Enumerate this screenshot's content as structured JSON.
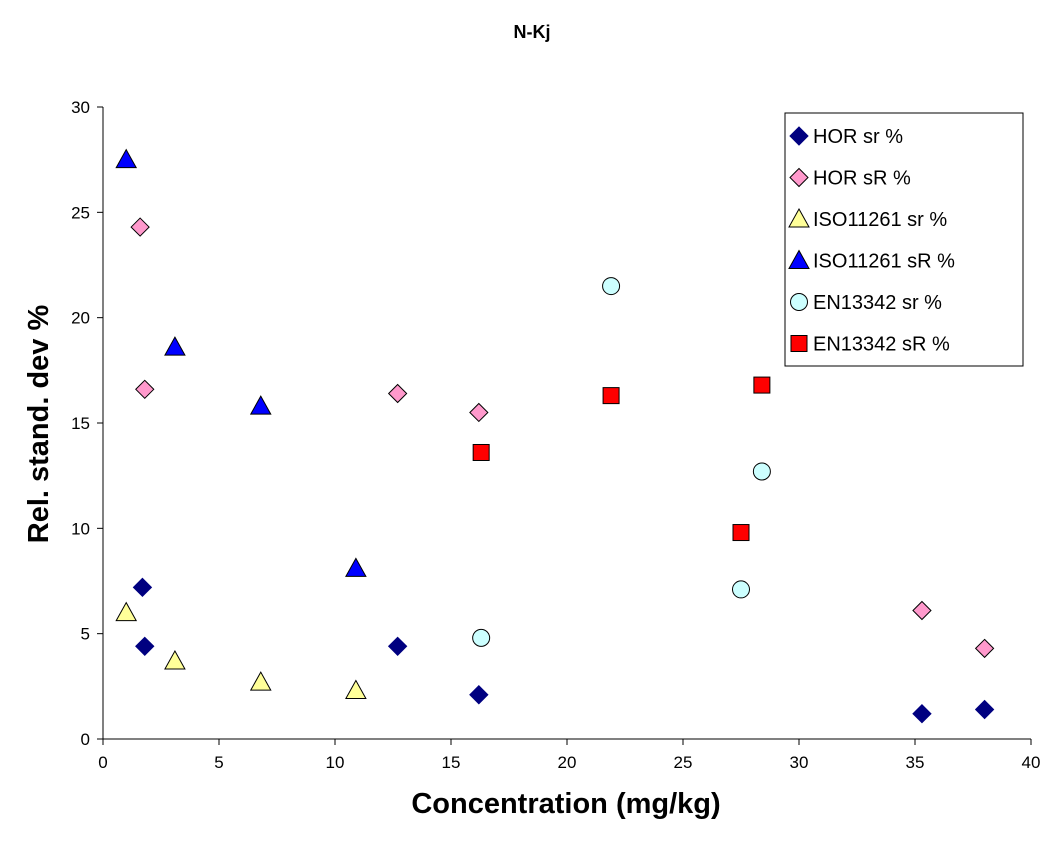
{
  "chart_data": {
    "type": "scatter",
    "title": "N-Kj",
    "xlabel": "Concentration (mg/kg)",
    "ylabel": "Rel. stand. dev %",
    "xlim": [
      0,
      40
    ],
    "ylim": [
      0,
      30
    ],
    "xticks": [
      0,
      5,
      10,
      15,
      20,
      25,
      30,
      35,
      40
    ],
    "yticks": [
      0,
      5,
      10,
      15,
      20,
      25,
      30
    ],
    "grid": false,
    "legend_position": "top-right",
    "series": [
      {
        "name": "HOR sr %",
        "marker": "diamond",
        "color": "#000080",
        "stroke": "#000080",
        "points": [
          [
            1.7,
            7.2
          ],
          [
            1.8,
            4.4
          ],
          [
            12.7,
            4.4
          ],
          [
            16.2,
            2.1
          ],
          [
            35.3,
            1.2
          ],
          [
            38.0,
            1.4
          ]
        ]
      },
      {
        "name": "HOR sR %",
        "marker": "diamond",
        "color": "#FF99CC",
        "stroke": "#000000",
        "points": [
          [
            1.6,
            24.3
          ],
          [
            1.8,
            16.6
          ],
          [
            12.7,
            16.4
          ],
          [
            16.2,
            15.5
          ],
          [
            35.3,
            6.1
          ],
          [
            38.0,
            4.3
          ]
        ]
      },
      {
        "name": "ISO11261 sr %",
        "marker": "triangle",
        "color": "#FFFF99",
        "stroke": "#000000",
        "points": [
          [
            1.0,
            6.0
          ],
          [
            3.1,
            3.7
          ],
          [
            6.8,
            2.7
          ],
          [
            10.9,
            2.3
          ]
        ]
      },
      {
        "name": "ISO11261 sR %",
        "marker": "triangle",
        "color": "#0000FF",
        "stroke": "#000000",
        "points": [
          [
            1.0,
            27.5
          ],
          [
            3.1,
            18.6
          ],
          [
            6.8,
            15.8
          ],
          [
            10.9,
            8.1
          ]
        ]
      },
      {
        "name": "EN13342 sr %",
        "marker": "circle",
        "color": "#CCFFFF",
        "stroke": "#000000",
        "points": [
          [
            16.3,
            4.8
          ],
          [
            21.9,
            21.5
          ],
          [
            27.5,
            7.1
          ],
          [
            28.4,
            12.7
          ]
        ]
      },
      {
        "name": "EN13342 sR %",
        "marker": "square",
        "color": "#FF0000",
        "stroke": "#000000",
        "points": [
          [
            16.3,
            13.6
          ],
          [
            21.9,
            16.3
          ],
          [
            27.5,
            9.8
          ],
          [
            28.4,
            16.8
          ]
        ]
      }
    ]
  }
}
